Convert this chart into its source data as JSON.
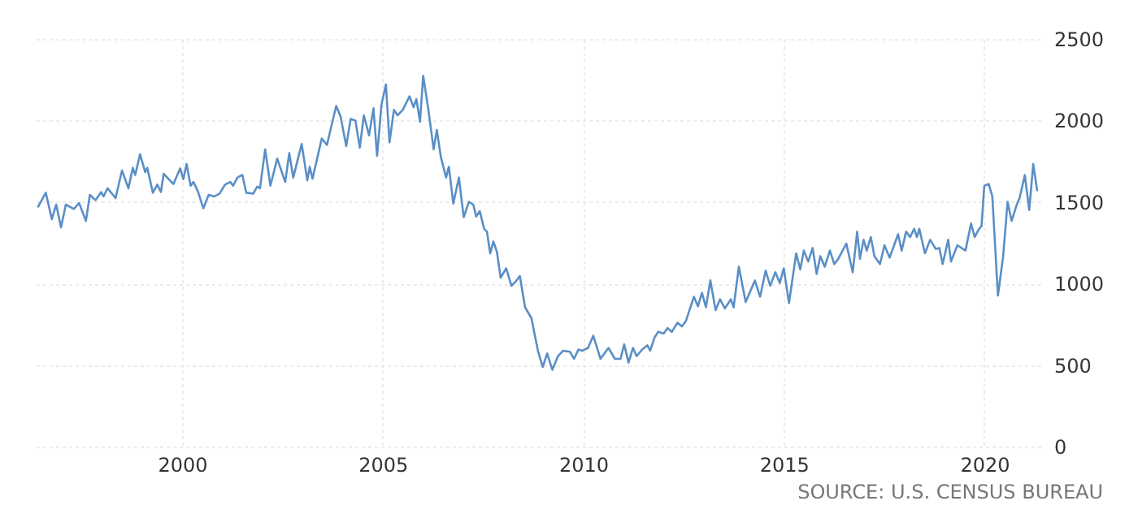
{
  "chart_data": {
    "type": "line",
    "annotations": [
      "SOURCE: U.S. CENSUS BUREAU"
    ],
    "x": [
      1996.4,
      1996.6,
      1996.75,
      1996.86,
      1996.98,
      1997.1,
      1997.3,
      1997.43,
      1997.6,
      1997.7,
      1997.84,
      1997.98,
      1998.04,
      1998.14,
      1998.34,
      1998.5,
      1998.66,
      1998.77,
      1998.83,
      1998.95,
      1999.08,
      1999.13,
      1999.27,
      1999.38,
      1999.47,
      1999.54,
      1999.78,
      1999.95,
      2000.03,
      2000.11,
      2000.21,
      2000.28,
      2000.39,
      2000.53,
      2000.66,
      2000.8,
      2000.93,
      2001.07,
      2001.2,
      2001.27,
      2001.38,
      2001.5,
      2001.6,
      2001.77,
      2001.87,
      2001.94,
      2002.07,
      2002.2,
      2002.37,
      2002.57,
      2002.67,
      2002.77,
      2002.98,
      2003.12,
      2003.18,
      2003.25,
      2003.48,
      2003.61,
      2003.71,
      2003.84,
      2003.95,
      2004.09,
      2004.2,
      2004.32,
      2004.43,
      2004.53,
      2004.66,
      2004.77,
      2004.86,
      2004.97,
      2005.08,
      2005.17,
      2005.28,
      2005.37,
      2005.5,
      2005.67,
      2005.77,
      2005.84,
      2005.93,
      2006.01,
      2006.14,
      2006.27,
      2006.35,
      2006.45,
      2006.58,
      2006.65,
      2006.76,
      2006.9,
      2007.02,
      2007.15,
      2007.26,
      2007.33,
      2007.42,
      2007.53,
      2007.6,
      2007.68,
      2007.76,
      2007.85,
      2007.94,
      2008.08,
      2008.21,
      2008.32,
      2008.42,
      2008.55,
      2008.71,
      2008.87,
      2008.99,
      2009.1,
      2009.23,
      2009.37,
      2009.5,
      2009.67,
      2009.77,
      2009.88,
      2009.98,
      2010.12,
      2010.25,
      2010.43,
      2010.63,
      2010.79,
      2010.93,
      2011.02,
      2011.13,
      2011.24,
      2011.33,
      2011.47,
      2011.6,
      2011.67,
      2011.78,
      2011.87,
      2012.01,
      2012.1,
      2012.21,
      2012.35,
      2012.46,
      2012.56,
      2012.76,
      2012.86,
      2012.96,
      2013.06,
      2013.17,
      2013.3,
      2013.41,
      2013.53,
      2013.68,
      2013.75,
      2013.88,
      2014.05,
      2014.28,
      2014.41,
      2014.55,
      2014.66,
      2014.79,
      2014.9,
      2015,
      2015.13,
      2015.31,
      2015.41,
      2015.5,
      2015.61,
      2015.72,
      2015.82,
      2015.91,
      2016.02,
      2016.15,
      2016.26,
      2016.36,
      2016.56,
      2016.72,
      2016.83,
      2016.9,
      2016.99,
      2017.07,
      2017.17,
      2017.26,
      2017.4,
      2017.51,
      2017.64,
      2017.85,
      2017.94,
      2018.05,
      2018.15,
      2018.25,
      2018.32,
      2018.38,
      2018.52,
      2018.65,
      2018.79,
      2018.88,
      2018.96,
      2019.1,
      2019.17,
      2019.33,
      2019.53,
      2019.67,
      2019.76,
      2019.87,
      2019.93,
      2020,
      2020.11,
      2020.2,
      2020.34,
      2020.47,
      2020.58,
      2020.68,
      2020.81,
      2020.88,
      2021.01,
      2021.12,
      2021.22,
      2021.32
    ],
    "series": [
      {
        "color": "#5a8fc6",
        "values": [
          1467,
          1557,
          1395,
          1484,
          1345,
          1484,
          1457,
          1494,
          1384,
          1544,
          1511,
          1561,
          1534,
          1584,
          1524,
          1693,
          1584,
          1710,
          1666,
          1793,
          1683,
          1710,
          1557,
          1607,
          1561,
          1673,
          1610,
          1706,
          1640,
          1733,
          1600,
          1623,
          1567,
          1461,
          1544,
          1534,
          1551,
          1607,
          1623,
          1600,
          1650,
          1666,
          1557,
          1551,
          1594,
          1584,
          1823,
          1600,
          1766,
          1623,
          1800,
          1650,
          1856,
          1633,
          1716,
          1643,
          1889,
          1850,
          1955,
          2089,
          2025,
          1843,
          2009,
          1999,
          1833,
          2032,
          1909,
          2075,
          1783,
          2098,
          2221,
          1866,
          2065,
          2032,
          2065,
          2148,
          2082,
          2131,
          1992,
          2274,
          2065,
          1823,
          1942,
          1776,
          1650,
          1716,
          1491,
          1650,
          1407,
          1501,
          1484,
          1411,
          1444,
          1335,
          1318,
          1185,
          1258,
          1192,
          1036,
          1093,
          986,
          1013,
          1046,
          854,
          787,
          588,
          488,
          571,
          471,
          555,
          588,
          581,
          538,
          595,
          588,
          605,
          680,
          538,
          605,
          538,
          538,
          627,
          515,
          605,
          555,
          595,
          621,
          588,
          670,
          704,
          694,
          727,
          704,
          760,
          737,
          770,
          919,
          860,
          943,
          854,
          1019,
          837,
          903,
          847,
          903,
          854,
          1103,
          886,
          1019,
          919,
          1079,
          986,
          1069,
          1003,
          1093,
          880,
          1185,
          1086,
          1202,
          1135,
          1218,
          1059,
          1168,
          1103,
          1202,
          1119,
          1152,
          1245,
          1069,
          1318,
          1152,
          1268,
          1202,
          1285,
          1168,
          1119,
          1235,
          1159,
          1302,
          1202,
          1318,
          1285,
          1335,
          1285,
          1335,
          1185,
          1268,
          1212,
          1218,
          1119,
          1268,
          1135,
          1235,
          1202,
          1368,
          1285,
          1335,
          1351,
          1600,
          1610,
          1534,
          926,
          1168,
          1501,
          1384,
          1484,
          1524,
          1666,
          1451,
          1733,
          1567
        ]
      }
    ],
    "xlim": [
      1996.35,
      2021.4
    ],
    "xticks": [
      2000,
      2005,
      2010,
      2015,
      2020
    ],
    "ylim": [
      0,
      2500
    ],
    "yticks": [
      0,
      500,
      1000,
      1500,
      2000,
      2500
    ],
    "grid": true
  }
}
